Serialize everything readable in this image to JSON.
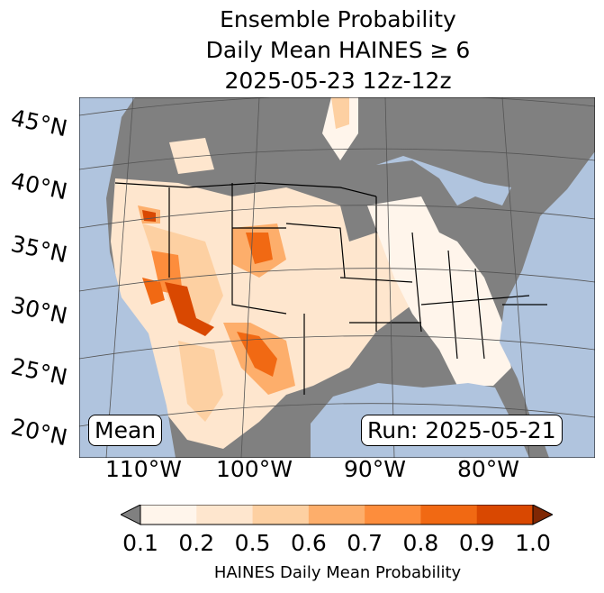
{
  "title": {
    "line1": "Ensemble Probability",
    "line2": "Daily Mean HAINES ≥ 6",
    "line3": "2025-05-23 12z-12z"
  },
  "lat_labels": [
    "45°N",
    "40°N",
    "35°N",
    "30°N",
    "25°N",
    "20°N"
  ],
  "lon_labels": [
    "110°W",
    "100°W",
    "90°W",
    "80°W"
  ],
  "stat_box": "Mean",
  "run_box": "Run: 2025-05-21",
  "colorbar": {
    "ticks": [
      "0.1",
      "0.2",
      "0.5",
      "0.6",
      "0.7",
      "0.8",
      "0.9",
      "1.0"
    ],
    "label": "HAINES Daily Mean Probability",
    "colors": [
      "#fff5eb",
      "#fee6ce",
      "#fdd0a2",
      "#fdae6b",
      "#fd8d3c",
      "#f16913",
      "#d94801"
    ],
    "under": "#808080",
    "over": "#7f2704"
  },
  "colors": {
    "ocean": "#b0c4de",
    "land_low": "#808080"
  }
}
